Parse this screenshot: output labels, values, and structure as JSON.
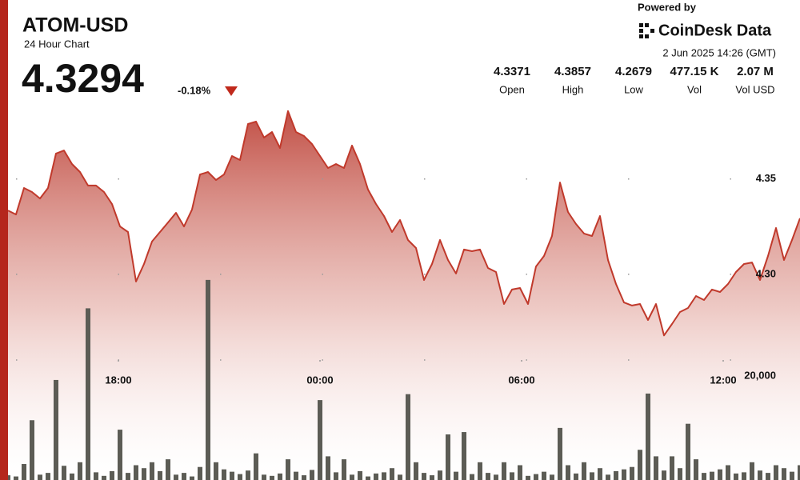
{
  "header": {
    "symbol": "ATOM-USD",
    "subtitle": "24 Hour Chart",
    "price": "4.3294",
    "change": "-0.18%",
    "powered_by": "Powered by",
    "brand": "CoinDesk Data",
    "timestamp": "2 Jun 2025 14:26 (GMT)",
    "stats": [
      {
        "value": "4.3371",
        "label": "Open"
      },
      {
        "value": "4.3857",
        "label": "High"
      },
      {
        "value": "4.2679",
        "label": "Low"
      },
      {
        "value": "477.15 K",
        "label": "Vol"
      },
      {
        "value": "2.07 M",
        "label": "Vol USD"
      }
    ]
  },
  "chart_data": {
    "type": "line",
    "xlim": [
      0,
      99
    ],
    "xticks": [
      {
        "value": 13.8,
        "label": "18:00"
      },
      {
        "value": 39,
        "label": "00:00"
      },
      {
        "value": 64.2,
        "label": "06:00"
      },
      {
        "value": 89.4,
        "label": "12:00"
      }
    ],
    "ylim": [
      4.192,
      4.444
    ],
    "yticks": [
      {
        "value": 4.3,
        "label": "4.30"
      },
      4.35
    ],
    "y2lim": [
      0,
      40000
    ],
    "y2ticks": [
      {
        "value": 20000,
        "label": "20,000"
      }
    ],
    "grid": true,
    "series": [
      {
        "color": "#c0392b",
        "values": [
          4.3335,
          4.3314,
          4.3453,
          4.3432,
          4.3398,
          4.3453,
          4.3634,
          4.365,
          4.3579,
          4.3537,
          4.3466,
          4.3466,
          4.3432,
          4.3369,
          4.3251,
          4.3222,
          4.2962,
          4.3054,
          4.3172,
          4.3222,
          4.3272,
          4.3323,
          4.3251,
          4.334,
          4.3524,
          4.3537,
          4.3495,
          4.3524,
          4.3621,
          4.36,
          4.3789,
          4.3802,
          4.3718,
          4.3747,
          4.3663,
          4.3857,
          4.3747,
          4.3726,
          4.3684,
          4.3621,
          4.3558,
          4.3579,
          4.3558,
          4.3676,
          4.3579,
          4.3445,
          4.3369,
          4.3306,
          4.3222,
          4.3285,
          4.318,
          4.3138,
          4.297,
          4.3054,
          4.318,
          4.3075,
          4.3004,
          4.313,
          4.3121,
          4.313,
          4.3033,
          4.3012,
          4.2844,
          4.292,
          4.2928,
          4.2844,
          4.3041,
          4.3096,
          4.3201,
          4.3482,
          4.3327,
          4.3264,
          4.3214,
          4.3201,
          4.3306,
          4.3075,
          4.2949,
          4.2852,
          4.2836,
          4.2844,
          4.276,
          4.2844,
          4.2679,
          4.2739,
          4.2802,
          4.2823,
          4.2886,
          4.2865,
          4.292,
          4.2907,
          4.2949,
          4.3012,
          4.3054,
          4.3062,
          4.297,
          4.3096,
          4.3243,
          4.3075,
          4.318,
          4.3294
        ]
      },
      {
        "type": "bar",
        "axis": "y2",
        "color": "#5c5c55",
        "values": [
          800,
          600,
          2700,
          10100,
          900,
          1200,
          16900,
          2400,
          1100,
          3000,
          29000,
          1300,
          700,
          1500,
          8500,
          1200,
          2500,
          2000,
          3000,
          1500,
          3500,
          900,
          1200,
          600,
          2200,
          33800,
          3000,
          1800,
          1400,
          1000,
          1600,
          4500,
          900,
          700,
          1100,
          3500,
          1400,
          800,
          1700,
          13500,
          4000,
          1300,
          3500,
          900,
          1500,
          600,
          1100,
          1300,
          2000,
          900,
          14500,
          3000,
          1200,
          800,
          1600,
          7700,
          1400,
          8100,
          1000,
          3000,
          1200,
          900,
          3000,
          1300,
          2500,
          700,
          1000,
          1400,
          900,
          8800,
          2500,
          1100,
          3000,
          1300,
          2000,
          900,
          1500,
          1800,
          2200,
          5100,
          14600,
          4000,
          1600,
          4000,
          2000,
          9500,
          3500,
          1200,
          1400,
          1800,
          2500,
          1100,
          1300,
          3000,
          1600,
          1200,
          2500,
          2000,
          1400,
          2500
        ]
      }
    ]
  }
}
